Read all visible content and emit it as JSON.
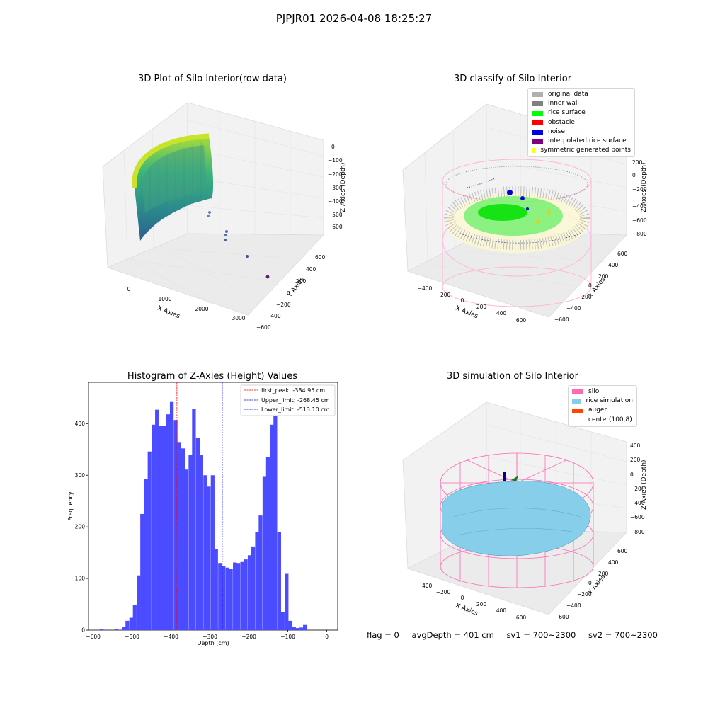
{
  "suptitle": "PJPJR01 2026-04-08 18:25:27",
  "panels": {
    "raw": {
      "title": "3D Plot of Silo Interior(row data)",
      "xlabel": "X Axies",
      "ylabel": "Y Axies",
      "zlabel": "Z Axies (Depth)",
      "xticks": [
        "0",
        "1000",
        "2000",
        "3000"
      ],
      "yticks": [
        "600",
        "400",
        "200",
        "0",
        "−200",
        "−400",
        "−600"
      ],
      "zticks": [
        "0",
        "−100",
        "−200",
        "−300",
        "−400",
        "−500",
        "−600"
      ]
    },
    "classify": {
      "title": "3D classify of Silo Interior",
      "xlabel": "X Axies",
      "ylabel": "Y Axies",
      "zlabel": "Z Axies (Depth)",
      "xticks": [
        "−400",
        "−200",
        "0",
        "200",
        "400",
        "600"
      ],
      "yticks": [
        "600",
        "400",
        "200",
        "0",
        "−200",
        "−400",
        "−600"
      ],
      "zticks": [
        "200",
        "0",
        "−200",
        "−400",
        "−600",
        "−800"
      ],
      "legend": [
        {
          "label": "original data",
          "color": "#b0b0b0"
        },
        {
          "label": "inner wall",
          "color": "#808080"
        },
        {
          "label": "rice surface",
          "color": "#00ff00"
        },
        {
          "label": "obstacle",
          "color": "#ff0000"
        },
        {
          "label": "noise",
          "color": "#0000e0"
        },
        {
          "label": "interpolated rice surface",
          "color": "#800080"
        },
        {
          "label": "symmetric generated points",
          "color": "#ffff00"
        }
      ]
    },
    "simulation": {
      "title": "3D simulation of Silo Interior",
      "xlabel": "X Axies",
      "ylabel": "Y Axies",
      "zlabel": "Z Axies (Depth)",
      "xticks": [
        "−400",
        "−200",
        "0",
        "200",
        "400",
        "600"
      ],
      "yticks": [
        "600",
        "400",
        "200",
        "0",
        "−200",
        "−400",
        "−600"
      ],
      "zticks": [
        "400",
        "200",
        "0",
        "−200",
        "−400",
        "−600",
        "−800"
      ],
      "legend": [
        {
          "label": "silo",
          "color": "#ff69b4"
        },
        {
          "label": "rice simulation",
          "color": "#87ceeb"
        },
        {
          "label": "auger",
          "color": "#ff4500"
        },
        {
          "label": "center(100,8)",
          "color": ""
        }
      ]
    }
  },
  "footer": {
    "flag": "flag = 0",
    "avg": "avgDepth = 401 cm",
    "sv1": "sv1 = 700~2300",
    "sv2": "sv2 = 700~2300"
  },
  "chart_data": [
    {
      "type": "scatter",
      "title": "3D Plot of Silo Interior(row data)",
      "xlabel": "X Axies",
      "ylabel": "Y Axies",
      "zlabel": "Z Axies (Depth)"
    },
    {
      "type": "scatter",
      "title": "3D classify of Silo Interior",
      "xlabel": "X Axies",
      "ylabel": "Y Axies",
      "zlabel": "Z Axies (Depth)"
    },
    {
      "type": "bar",
      "title": "Histogram of Z-Axies (Height) Values",
      "xlabel": "Depth (cm)",
      "ylabel": "Frequency",
      "xlim": [
        -612,
        28
      ],
      "ylim": [
        0,
        480
      ],
      "bar_color": "#4b4bff",
      "bin_width": 9.5,
      "bins_x": [
        -583,
        -545,
        -526,
        -517,
        -507,
        -498,
        -488,
        -479,
        -469,
        -460,
        -450,
        -441,
        -431,
        -422,
        -412,
        -403,
        -393,
        -384,
        -374,
        -365,
        -355,
        -346,
        -336,
        -327,
        -317,
        -308,
        -298,
        -289,
        -279,
        -270,
        -260,
        -251,
        -241,
        -232,
        -222,
        -213,
        -203,
        -194,
        -184,
        -175,
        -165,
        -156,
        -146,
        -137,
        -127,
        -118,
        -108,
        -99,
        -89,
        -80,
        -70,
        -61,
        -51,
        -42,
        -32,
        -6
      ],
      "values": [
        2,
        2,
        6,
        18,
        24,
        49,
        106,
        225,
        293,
        346,
        398,
        427,
        396,
        396,
        418,
        442,
        407,
        363,
        352,
        311,
        339,
        429,
        372,
        340,
        300,
        278,
        300,
        157,
        130,
        124,
        121,
        118,
        131,
        130,
        132,
        137,
        145,
        162,
        190,
        222,
        297,
        336,
        398,
        452,
        190,
        35,
        109,
        18,
        6,
        4,
        5,
        10,
        0,
        0,
        0,
        0
      ],
      "xticks": [
        "−600",
        "−500",
        "−400",
        "−300",
        "−200",
        "−100",
        "0"
      ],
      "xtick_values": [
        -600,
        -500,
        -400,
        -300,
        -200,
        -100,
        0
      ],
      "yticks": [
        "0",
        "100",
        "200",
        "300",
        "400"
      ],
      "ytick_values": [
        0,
        100,
        200,
        300,
        400
      ],
      "lines": [
        {
          "label": "first_peak: -384.95 cm",
          "x": -384.95,
          "color": "#ff0000"
        },
        {
          "label": "Upper_limit: -268.45 cm",
          "x": -268.45,
          "color": "#0000ff"
        },
        {
          "label": "Lower_limit: -513.10 cm",
          "x": -513.1,
          "color": "#0000ff"
        }
      ],
      "legend_position": "upper right"
    },
    {
      "type": "surface",
      "title": "3D simulation of Silo Interior",
      "xlabel": "X Axies",
      "ylabel": "Y Axies",
      "zlabel": "Z Axies (Depth)"
    }
  ]
}
